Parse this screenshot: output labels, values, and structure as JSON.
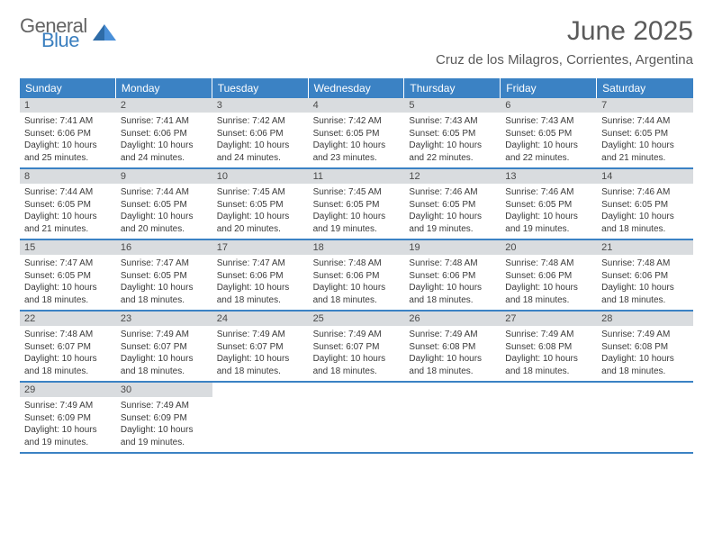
{
  "logo": {
    "general": "General",
    "blue": "Blue"
  },
  "title": "June 2025",
  "subtitle": "Cruz de los Milagros, Corrientes, Argentina",
  "colors": {
    "accent": "#3b82c4",
    "header_text": "#5a5a5a",
    "daynum_bg": "#d9dcdf",
    "body_text": "#3a3a3a",
    "logo_gray": "#646464",
    "logo_blue": "#3b7fbf"
  },
  "dow": [
    "Sunday",
    "Monday",
    "Tuesday",
    "Wednesday",
    "Thursday",
    "Friday",
    "Saturday"
  ],
  "days": [
    {
      "n": 1,
      "sunrise": "7:41 AM",
      "sunset": "6:06 PM",
      "dl": "10 hours and 25 minutes."
    },
    {
      "n": 2,
      "sunrise": "7:41 AM",
      "sunset": "6:06 PM",
      "dl": "10 hours and 24 minutes."
    },
    {
      "n": 3,
      "sunrise": "7:42 AM",
      "sunset": "6:06 PM",
      "dl": "10 hours and 24 minutes."
    },
    {
      "n": 4,
      "sunrise": "7:42 AM",
      "sunset": "6:05 PM",
      "dl": "10 hours and 23 minutes."
    },
    {
      "n": 5,
      "sunrise": "7:43 AM",
      "sunset": "6:05 PM",
      "dl": "10 hours and 22 minutes."
    },
    {
      "n": 6,
      "sunrise": "7:43 AM",
      "sunset": "6:05 PM",
      "dl": "10 hours and 22 minutes."
    },
    {
      "n": 7,
      "sunrise": "7:44 AM",
      "sunset": "6:05 PM",
      "dl": "10 hours and 21 minutes."
    },
    {
      "n": 8,
      "sunrise": "7:44 AM",
      "sunset": "6:05 PM",
      "dl": "10 hours and 21 minutes."
    },
    {
      "n": 9,
      "sunrise": "7:44 AM",
      "sunset": "6:05 PM",
      "dl": "10 hours and 20 minutes."
    },
    {
      "n": 10,
      "sunrise": "7:45 AM",
      "sunset": "6:05 PM",
      "dl": "10 hours and 20 minutes."
    },
    {
      "n": 11,
      "sunrise": "7:45 AM",
      "sunset": "6:05 PM",
      "dl": "10 hours and 19 minutes."
    },
    {
      "n": 12,
      "sunrise": "7:46 AM",
      "sunset": "6:05 PM",
      "dl": "10 hours and 19 minutes."
    },
    {
      "n": 13,
      "sunrise": "7:46 AM",
      "sunset": "6:05 PM",
      "dl": "10 hours and 19 minutes."
    },
    {
      "n": 14,
      "sunrise": "7:46 AM",
      "sunset": "6:05 PM",
      "dl": "10 hours and 18 minutes."
    },
    {
      "n": 15,
      "sunrise": "7:47 AM",
      "sunset": "6:05 PM",
      "dl": "10 hours and 18 minutes."
    },
    {
      "n": 16,
      "sunrise": "7:47 AM",
      "sunset": "6:05 PM",
      "dl": "10 hours and 18 minutes."
    },
    {
      "n": 17,
      "sunrise": "7:47 AM",
      "sunset": "6:06 PM",
      "dl": "10 hours and 18 minutes."
    },
    {
      "n": 18,
      "sunrise": "7:48 AM",
      "sunset": "6:06 PM",
      "dl": "10 hours and 18 minutes."
    },
    {
      "n": 19,
      "sunrise": "7:48 AM",
      "sunset": "6:06 PM",
      "dl": "10 hours and 18 minutes."
    },
    {
      "n": 20,
      "sunrise": "7:48 AM",
      "sunset": "6:06 PM",
      "dl": "10 hours and 18 minutes."
    },
    {
      "n": 21,
      "sunrise": "7:48 AM",
      "sunset": "6:06 PM",
      "dl": "10 hours and 18 minutes."
    },
    {
      "n": 22,
      "sunrise": "7:48 AM",
      "sunset": "6:07 PM",
      "dl": "10 hours and 18 minutes."
    },
    {
      "n": 23,
      "sunrise": "7:49 AM",
      "sunset": "6:07 PM",
      "dl": "10 hours and 18 minutes."
    },
    {
      "n": 24,
      "sunrise": "7:49 AM",
      "sunset": "6:07 PM",
      "dl": "10 hours and 18 minutes."
    },
    {
      "n": 25,
      "sunrise": "7:49 AM",
      "sunset": "6:07 PM",
      "dl": "10 hours and 18 minutes."
    },
    {
      "n": 26,
      "sunrise": "7:49 AM",
      "sunset": "6:08 PM",
      "dl": "10 hours and 18 minutes."
    },
    {
      "n": 27,
      "sunrise": "7:49 AM",
      "sunset": "6:08 PM",
      "dl": "10 hours and 18 minutes."
    },
    {
      "n": 28,
      "sunrise": "7:49 AM",
      "sunset": "6:08 PM",
      "dl": "10 hours and 18 minutes."
    },
    {
      "n": 29,
      "sunrise": "7:49 AM",
      "sunset": "6:09 PM",
      "dl": "10 hours and 19 minutes."
    },
    {
      "n": 30,
      "sunrise": "7:49 AM",
      "sunset": "6:09 PM",
      "dl": "10 hours and 19 minutes."
    }
  ],
  "labels": {
    "sunrise": "Sunrise:",
    "sunset": "Sunset:",
    "daylight": "Daylight:"
  },
  "layout": {
    "first_weekday_offset": 0,
    "trailing_empty": 5
  }
}
